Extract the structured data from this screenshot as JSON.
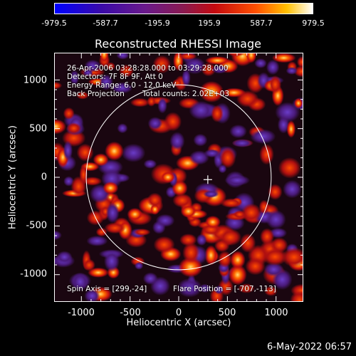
{
  "colorbar": {
    "ticks": [
      "-979.5",
      "-587.7",
      "-195.9",
      "195.9",
      "587.7",
      "979.5"
    ],
    "gradient_colors": [
      "#0000ff",
      "#4b0082",
      "#7a1d8a",
      "#b4001e",
      "#ff3a00",
      "#ffc400",
      "#ffffff"
    ]
  },
  "title": "Reconstructed RHESSI Image",
  "info": {
    "time_range": "26-Apr-2006 03:28:28.000 to 03:29:28.000",
    "detectors": "Detectors: 7F 8F 9F, Att 0",
    "energy": "Energy Range: 6.0 - 12.0 keV",
    "method": "Back Projection",
    "counts": "Total counts: 2.02E+03",
    "spin_axis": "Spin Axis = [299,-24]",
    "flare_position": "Flare Position = [-707,-113]"
  },
  "axes": {
    "xlabel": "Heliocentric X (arcsec)",
    "ylabel": "Heliocentric Y (arcsec)",
    "xticks": [
      "-1000",
      "-500",
      "0",
      "500",
      "1000"
    ],
    "yticks": [
      "1000",
      "500",
      "0",
      "-500",
      "-1000"
    ],
    "xlim": [
      -1280,
      1280
    ],
    "ylim": [
      -1280,
      1280
    ]
  },
  "solar_disk_radius_arcsec": 950,
  "marker_position_arcsec": [
    299,
    -24
  ],
  "footer_date": "6-May-2022 06:57"
}
